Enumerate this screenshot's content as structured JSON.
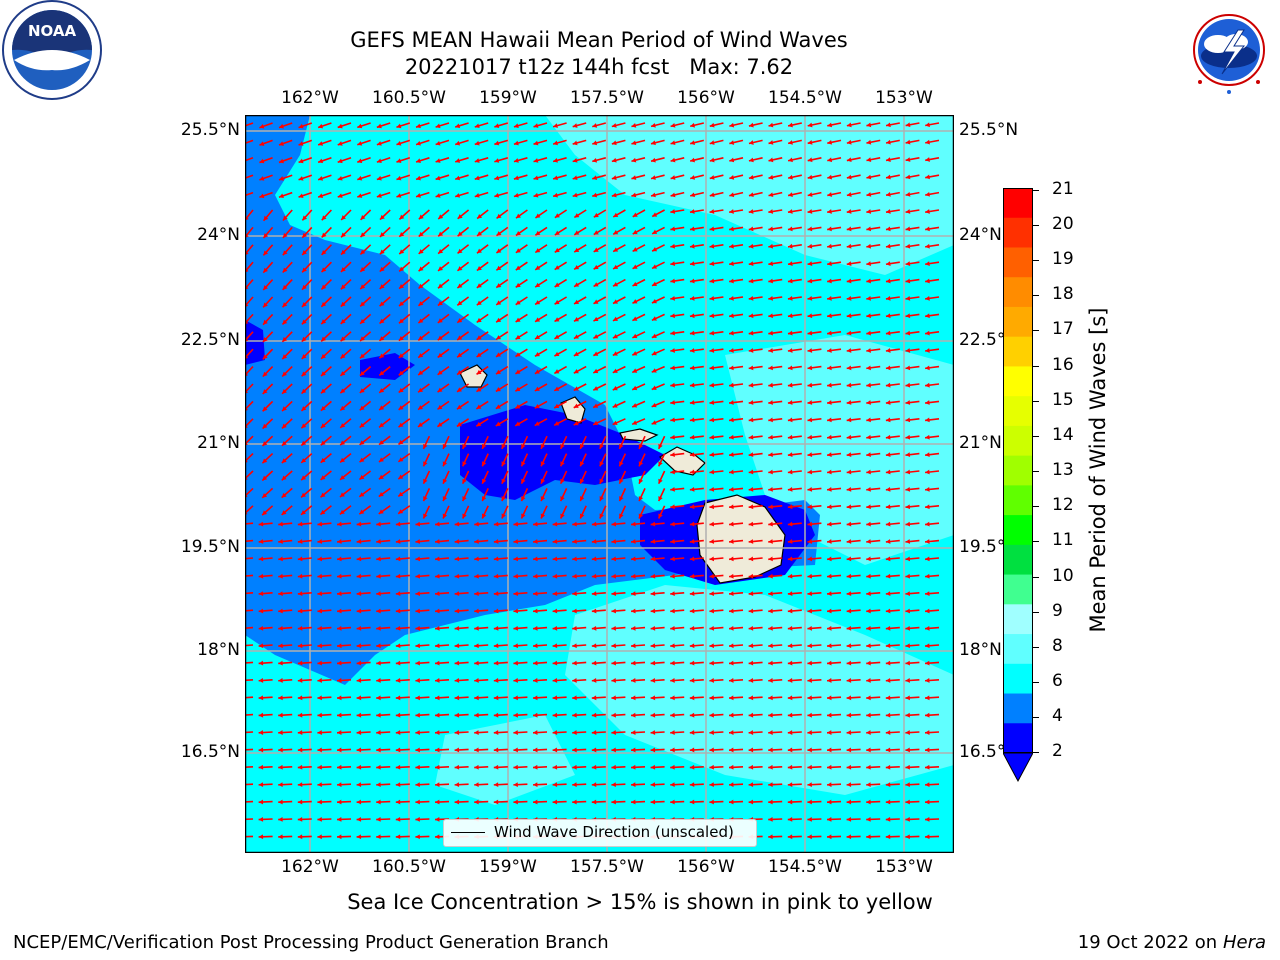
{
  "header": {
    "title_line1": "GEFS MEAN Hawaii Mean Period of Wind Waves",
    "title_line2": "20221017 t12z 144h fcst   Max: 7.62"
  },
  "logos": {
    "left": {
      "name": "noaa-logo",
      "text": "NOAA",
      "ring_text": "NATIONAL OCEANIC AND ATMOSPHERIC ADMINISTRATION · U.S. DEPARTMENT OF COMMERCE"
    },
    "right": {
      "name": "nws-logo",
      "ring_text": "NATIONAL WEATHER SERVICE"
    }
  },
  "map": {
    "lon_ticks": [
      "162°W",
      "160.5°W",
      "159°W",
      "157.5°W",
      "156°W",
      "154.5°W",
      "153°W"
    ],
    "lat_ticks": [
      "25.5°N",
      "24°N",
      "22.5°N",
      "21°N",
      "19.5°N",
      "18°N",
      "16.5°N"
    ],
    "legend_label": "Wind Wave Direction (unscaled)",
    "arrow_color": "#ff0000",
    "land_color": "#efebd9",
    "grid_color": "#b0b0b0"
  },
  "colorbar": {
    "label": "Mean Period of Wind Waves [s]",
    "ticks": [
      "21",
      "20",
      "19",
      "18",
      "17",
      "16",
      "15",
      "14",
      "13",
      "12",
      "11",
      "10",
      "9",
      "8",
      "6",
      "4",
      "2"
    ],
    "colors": [
      "#ff0000",
      "#ff3000",
      "#ff6000",
      "#ff8c00",
      "#ffaa00",
      "#ffd000",
      "#ffff00",
      "#e6ff00",
      "#ccff00",
      "#a0ff00",
      "#60ff00",
      "#00ff00",
      "#00e040",
      "#40ff90",
      "#a0ffff",
      "#60ffff",
      "#00ffff",
      "#0080ff",
      "#0000ff"
    ]
  },
  "sea_ice_note": "Sea Ice Concentration > 15% is shown in pink to yellow",
  "footer": {
    "left": "NCEP/EMC/Verification Post Processing Product Generation Branch",
    "right_prefix": "19 Oct 2022 on ",
    "right_machine": "Hera"
  }
}
